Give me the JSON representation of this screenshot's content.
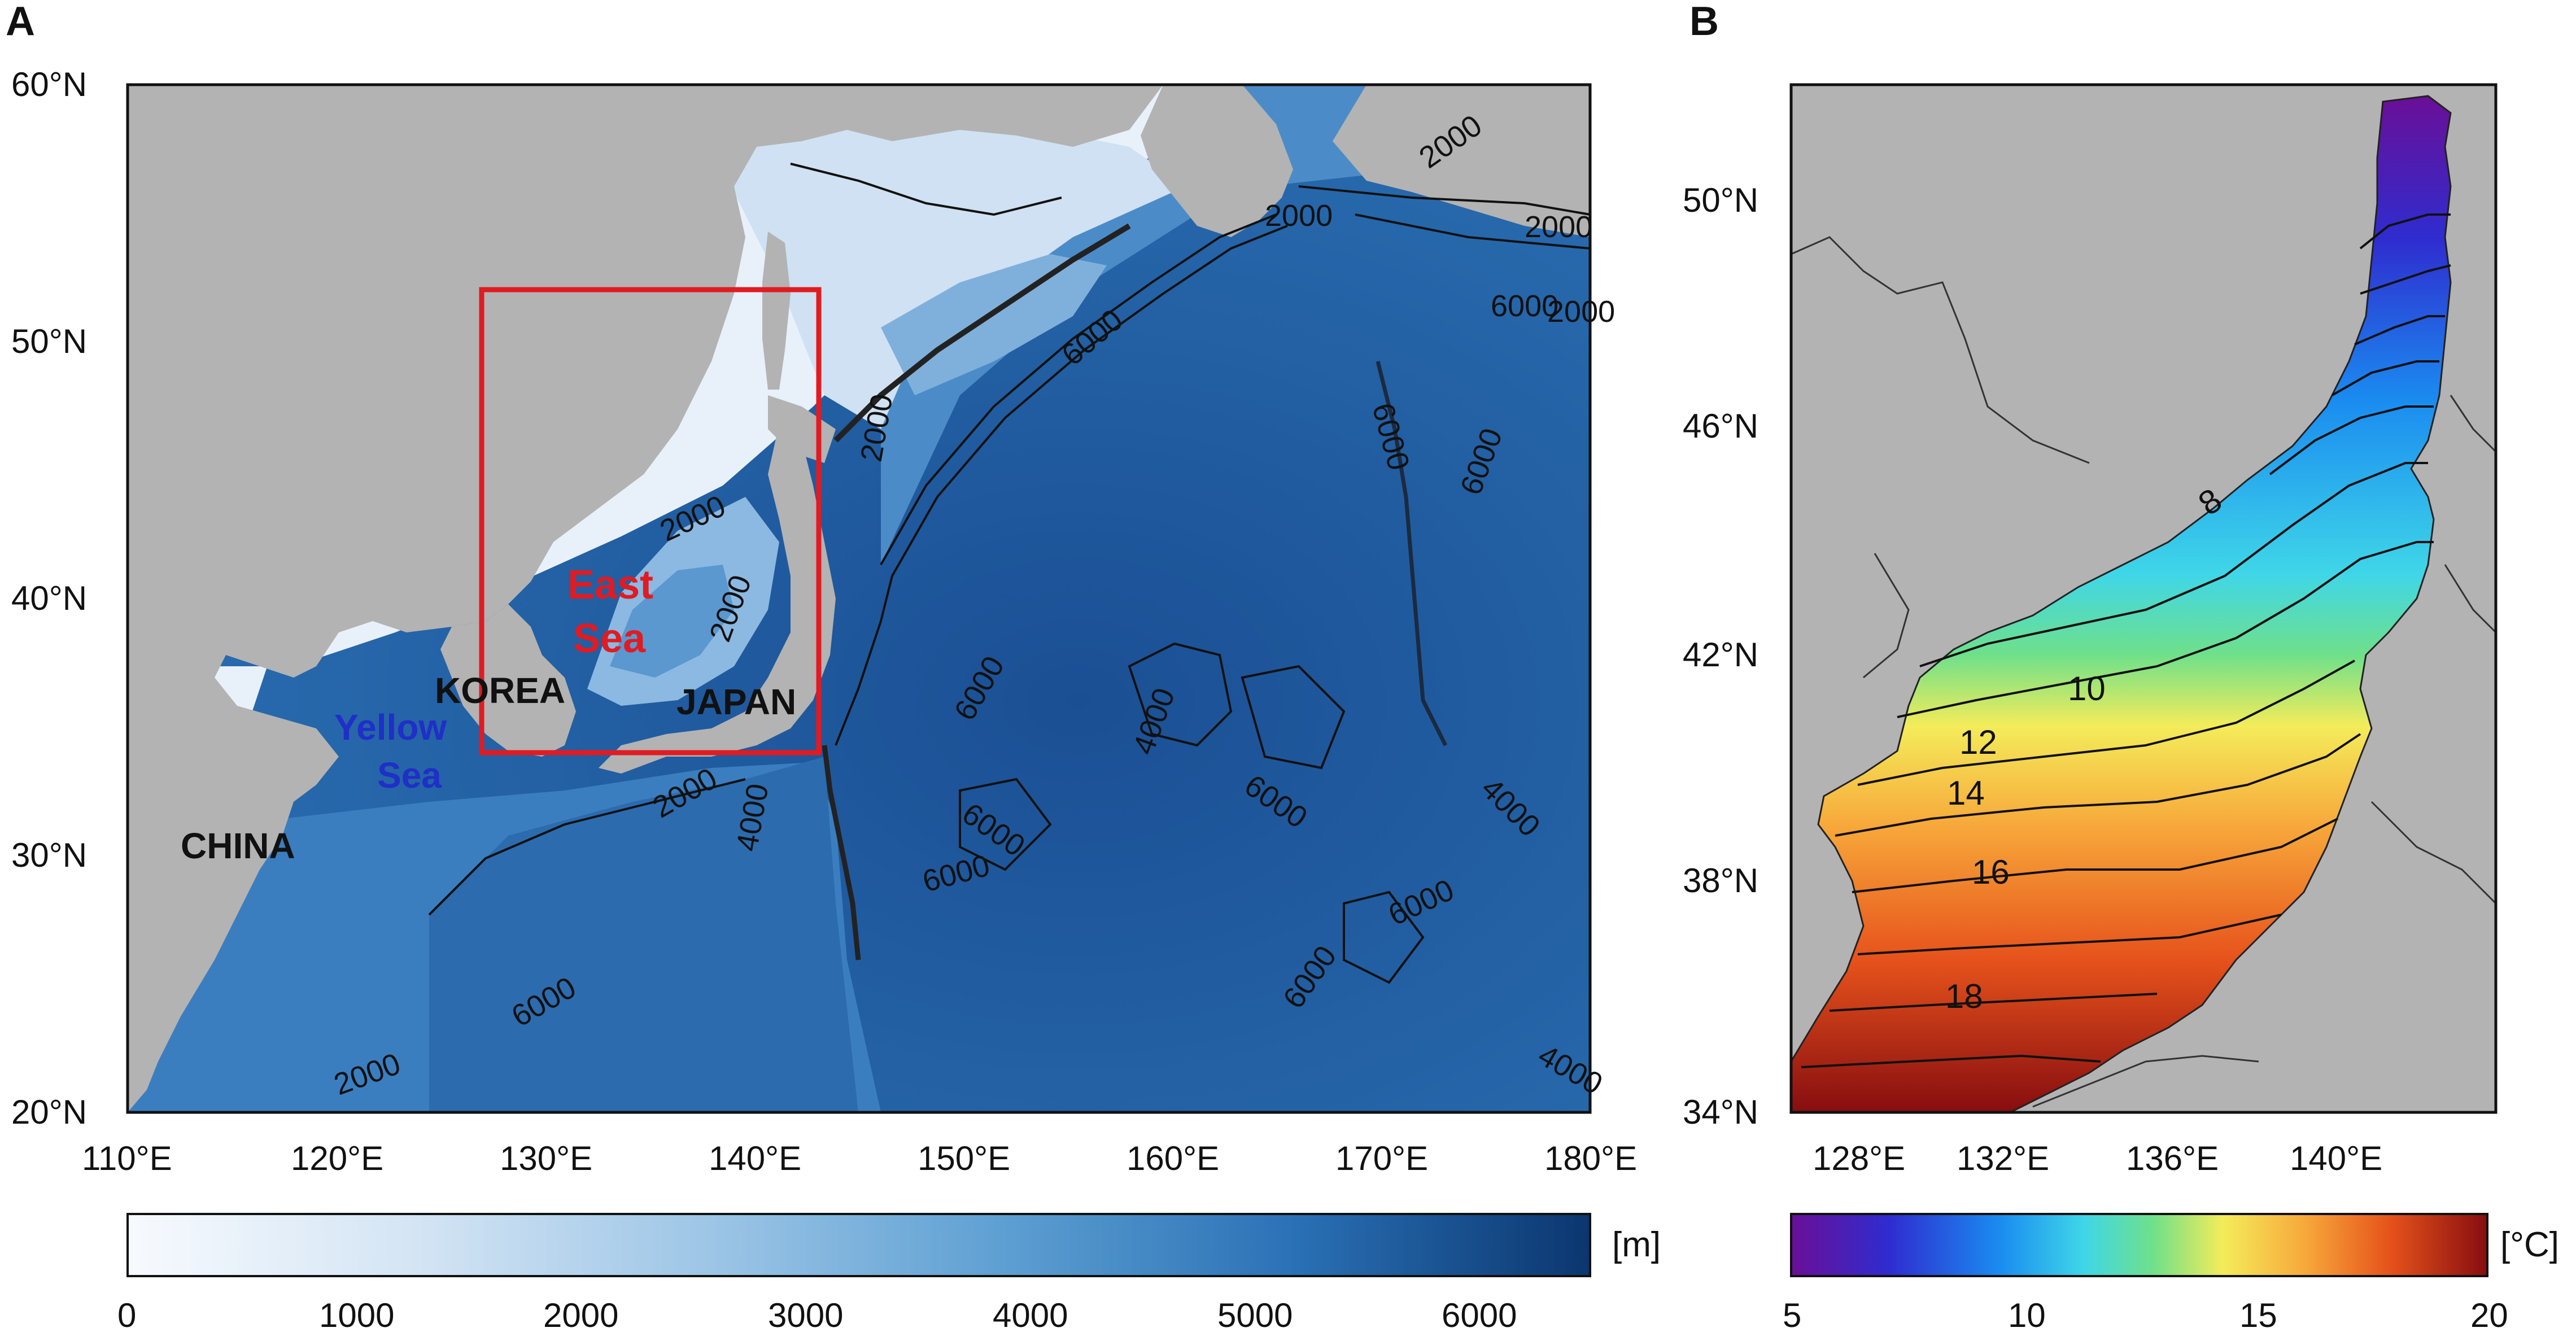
{
  "panel_a": {
    "letter": "A",
    "lat_ticks": [
      "60°N",
      "50°N",
      "40°N",
      "30°N",
      "20°N"
    ],
    "lon_ticks": [
      "110°E",
      "120°E",
      "130°E",
      "140°E",
      "150°E",
      "160°E",
      "170°E",
      "180°E"
    ],
    "regions": {
      "east_sea_line1": "East",
      "east_sea_line2": "Sea",
      "korea": "KOREA",
      "japan": "JAPAN",
      "yellow_sea_line1": "Yellow",
      "yellow_sea_line2": "Sea",
      "china": "CHINA"
    },
    "contour_labels": [
      "2000",
      "2000",
      "2000",
      "2000",
      "2000",
      "2000",
      "2000",
      "2000",
      "2000",
      "4000",
      "4000",
      "4000",
      "4000",
      "6000",
      "6000",
      "6000",
      "6000",
      "6000",
      "6000",
      "6000",
      "6000",
      "6000",
      "6000",
      "6000"
    ],
    "colorbar": {
      "unit": "[m]",
      "ticks": [
        "0",
        "1000",
        "2000",
        "3000",
        "4000",
        "5000",
        "6000"
      ],
      "range": [
        0,
        6500
      ]
    },
    "colors": {
      "land": "#b3b3b3",
      "shallow": "#f4f8fd",
      "deep": "#0d3b78",
      "box": "#e11b22"
    }
  },
  "panel_b": {
    "letter": "B",
    "lat_ticks": [
      "50°N",
      "46°N",
      "42°N",
      "38°N",
      "34°N"
    ],
    "lon_ticks": [
      "128°E",
      "132°E",
      "136°E",
      "140°E"
    ],
    "isotherm_labels": [
      "8",
      "10",
      "12",
      "14",
      "16",
      "18"
    ],
    "colorbar": {
      "unit": "[°C]",
      "ticks": [
        "5",
        "10",
        "15",
        "20"
      ],
      "range": [
        5,
        20
      ]
    },
    "colors": {
      "land": "#b3b3b3",
      "cold": "#5a0f8c",
      "warm": "#8b0d0d"
    }
  }
}
